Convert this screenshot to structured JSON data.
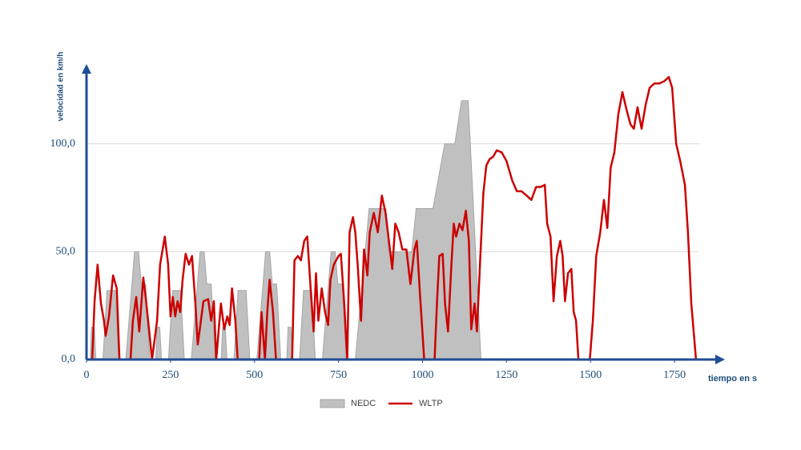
{
  "chart_data": {
    "type": "line",
    "x_label": "tiempo en s",
    "y_label": "velocidad en km/h",
    "xlim": [
      0,
      1900
    ],
    "ylim": [
      0,
      137
    ],
    "xticks": [
      0,
      250,
      500,
      750,
      1000,
      1250,
      1500,
      1750
    ],
    "yticks": [
      {
        "value": 0,
        "label": "0,0"
      },
      {
        "value": 50,
        "label": "50,0"
      },
      {
        "value": 100,
        "label": "100,0"
      }
    ],
    "grid": true,
    "legend": "bottom",
    "axis_color": "#1f4e96",
    "series": [
      {
        "name": "NEDC",
        "type": "area",
        "color": "#c0c0c0",
        "x": [
          0,
          11,
          15,
          23,
          28,
          49,
          61,
          85,
          96,
          117,
          143,
          155,
          163,
          176,
          188,
          195,
          206,
          210,
          218,
          223,
          244,
          256,
          280,
          291,
          312,
          338,
          350,
          358,
          371,
          383,
          390,
          401,
          405,
          413,
          418,
          439,
          451,
          475,
          486,
          507,
          533,
          545,
          553,
          566,
          578,
          585,
          596,
          600,
          608,
          613,
          634,
          646,
          670,
          681,
          702,
          728,
          740,
          748,
          761,
          773,
          800,
          841,
          891,
          899,
          968,
          981,
          1031,
          1066,
          1096,
          1116,
          1136,
          1174,
          1180
        ],
        "values": [
          0,
          0,
          15,
          15,
          0,
          0,
          32,
          32,
          0,
          0,
          50,
          50,
          35,
          35,
          0,
          0,
          0,
          15,
          15,
          0,
          0,
          32,
          32,
          0,
          0,
          50,
          50,
          35,
          35,
          0,
          0,
          0,
          15,
          15,
          0,
          0,
          32,
          32,
          0,
          0,
          50,
          50,
          35,
          35,
          0,
          0,
          0,
          15,
          15,
          0,
          0,
          32,
          32,
          0,
          0,
          50,
          50,
          35,
          35,
          0,
          0,
          70,
          70,
          50,
          50,
          70,
          70,
          100,
          100,
          120,
          120,
          0,
          0
        ]
      },
      {
        "name": "WLTP",
        "type": "line",
        "color": "#cc0000",
        "x": [
          0,
          17,
          24,
          33,
          43,
          52,
          57,
          67,
          79,
          90,
          98,
          131,
          138,
          148,
          157,
          169,
          176,
          186,
          195,
          210,
          219,
          233,
          243,
          250,
          257,
          264,
          271,
          279,
          286,
          295,
          305,
          314,
          324,
          331,
          338,
          348,
          362,
          371,
          379,
          386,
          400,
          410,
          419,
          426,
          433,
          443,
          450,
          514,
          521,
          531,
          538,
          545,
          555,
          564,
          612,
          619,
          629,
          638,
          648,
          657,
          667,
          676,
          683,
          690,
          700,
          710,
          719,
          726,
          736,
          750,
          757,
          767,
          776,
          783,
          793,
          800,
          807,
          817,
          826,
          836,
          843,
          855,
          867,
          879,
          890,
          900,
          910,
          919,
          929,
          940,
          952,
          964,
          976,
          983,
          993,
          1005,
          1036,
          1043,
          1050,
          1060,
          1067,
          1076,
          1086,
          1093,
          1100,
          1110,
          1119,
          1129,
          1138,
          1145,
          1155,
          1162,
          1171,
          1181,
          1190,
          1200,
          1210,
          1221,
          1236,
          1250,
          1267,
          1281,
          1295,
          1310,
          1324,
          1338,
          1352,
          1364,
          1371,
          1381,
          1390,
          1400,
          1410,
          1417,
          1424,
          1433,
          1443,
          1450,
          1457,
          1464,
          1498,
          1507,
          1517,
          1529,
          1540,
          1550,
          1560,
          1571,
          1583,
          1595,
          1607,
          1619,
          1629,
          1640,
          1652,
          1664,
          1676,
          1690,
          1705,
          1719,
          1733,
          1743,
          1755,
          1767,
          1781,
          1790,
          1800,
          1814
        ],
        "values": [
          0,
          0,
          27,
          44,
          26,
          18,
          11,
          20,
          39,
          33,
          0,
          0,
          18,
          29,
          13,
          38,
          29,
          14,
          0,
          18,
          44,
          57,
          44,
          20,
          29,
          20,
          27,
          22,
          37,
          49,
          44,
          48,
          26,
          7,
          15,
          27,
          28,
          18,
          27,
          0,
          26,
          14,
          20,
          16,
          33,
          18,
          0,
          0,
          22,
          0,
          22,
          37,
          22,
          0,
          0,
          46,
          48,
          46,
          55,
          57,
          33,
          13,
          40,
          18,
          33,
          22,
          16,
          37,
          44,
          48,
          49,
          26,
          0,
          59,
          66,
          59,
          44,
          18,
          51,
          39,
          59,
          68,
          59,
          76,
          68,
          55,
          42,
          63,
          59,
          51,
          51,
          35,
          51,
          55,
          29,
          0,
          0,
          26,
          48,
          49,
          26,
          13,
          44,
          63,
          57,
          63,
          60,
          69,
          55,
          14,
          26,
          13,
          44,
          77,
          90,
          93,
          94,
          97,
          96,
          92,
          83,
          78,
          78,
          76,
          74,
          80,
          80,
          81,
          63,
          57,
          27,
          48,
          55,
          48,
          27,
          40,
          42,
          22,
          18,
          0,
          0,
          18,
          48,
          59,
          74,
          61,
          89,
          96,
          114,
          124,
          116,
          109,
          107,
          117,
          107,
          118,
          126,
          128,
          128,
          129,
          131,
          126,
          100,
          92,
          81,
          59,
          26,
          0
        ]
      }
    ]
  }
}
